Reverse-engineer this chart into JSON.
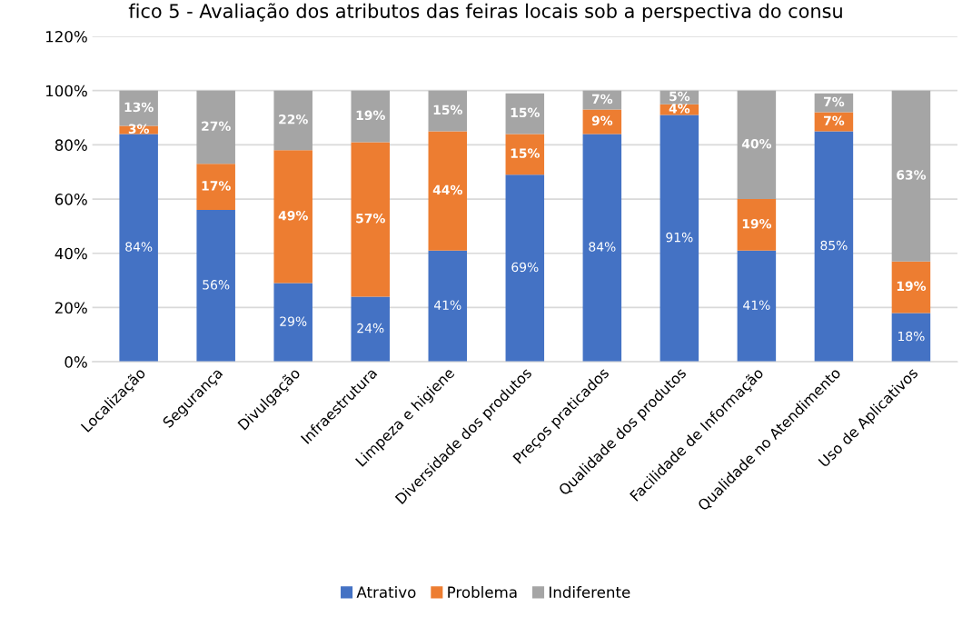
{
  "chart_data": {
    "type": "bar",
    "stacked": true,
    "title": "fico 5 - Avaliação dos atributos das feiras locais sob a perspectiva do consu",
    "categories": [
      "Localização",
      "Segurança",
      "Divulgação",
      "Infraestrutura",
      "Limpeza e higiene",
      "Diversidade dos produtos",
      "Preços praticados",
      "Qualidade dos produtos",
      "Facilidade de Informação",
      "Qualidade no Atendimento",
      "Uso de Aplicativos"
    ],
    "series": [
      {
        "name": "Atrativo",
        "color": "#4472c4",
        "values": [
          84,
          56,
          29,
          24,
          41,
          69,
          84,
          91,
          41,
          85,
          18
        ],
        "value_labels": [
          "84%",
          "56%",
          "29%",
          "24%",
          "41%",
          "69%",
          "84%",
          "91%",
          "41%",
          "85%",
          "18%"
        ]
      },
      {
        "name": "Problema",
        "color": "#ed7d31",
        "values": [
          3,
          17,
          49,
          57,
          44,
          15,
          9,
          4,
          19,
          7,
          19
        ],
        "value_labels": [
          "3%",
          "17%",
          "49%",
          "57%",
          "44%",
          "15%",
          "9%",
          "4%",
          "19%",
          "7%",
          "19%"
        ]
      },
      {
        "name": "Indiferente",
        "color": "#a5a5a5",
        "values": [
          13,
          27,
          22,
          19,
          15,
          15,
          7,
          5,
          40,
          7,
          63
        ],
        "value_labels": [
          "13%",
          "27%",
          "22%",
          "19%",
          "15%",
          "15%",
          "7%",
          "5%",
          "40%",
          "7%",
          "63%"
        ]
      }
    ],
    "ylim": [
      0,
      120
    ],
    "yticks": [
      {
        "value": 0,
        "label": "0%"
      },
      {
        "value": 20,
        "label": "20%"
      },
      {
        "value": 40,
        "label": "40%"
      },
      {
        "value": 60,
        "label": "60%"
      },
      {
        "value": 80,
        "label": "80%"
      },
      {
        "value": 100,
        "label": "100%"
      },
      {
        "value": 120,
        "label": "120%"
      }
    ],
    "grid": "y",
    "legend": "bottom"
  }
}
